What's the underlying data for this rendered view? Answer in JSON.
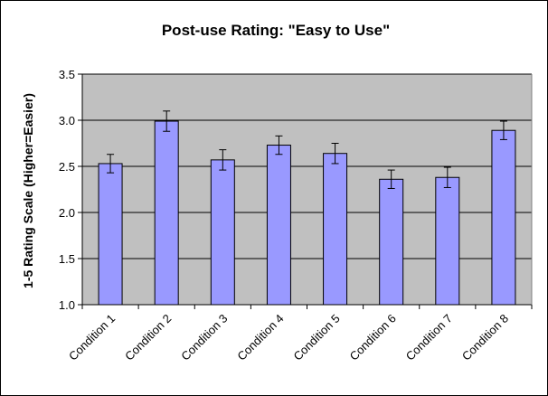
{
  "chart_data": {
    "type": "bar",
    "title": "Post-use Rating: \"Easy to Use\"",
    "xlabel": "",
    "ylabel": "1-5 Rating Scale (Higher=Easier)",
    "categories": [
      "Condition 1",
      "Condition 2",
      "Condition 3",
      "Condition 4",
      "Condition 5",
      "Condition 6",
      "Condition 7",
      "Condition 8"
    ],
    "values": [
      2.53,
      2.99,
      2.57,
      2.73,
      2.64,
      2.36,
      2.38,
      2.89
    ],
    "error": [
      0.1,
      0.11,
      0.11,
      0.1,
      0.11,
      0.1,
      0.11,
      0.1
    ],
    "ylim": [
      1.0,
      3.5
    ],
    "yticks": [
      "1.0",
      "1.5",
      "2.0",
      "2.5",
      "3.0",
      "3.5"
    ],
    "grid": true,
    "legend": "none",
    "colors": {
      "bar_fill": "#9999ff",
      "bar_stroke": "#000000",
      "plot_background": "#c0c0c0",
      "gridline": "#000000",
      "error_bar": "#000000"
    }
  }
}
